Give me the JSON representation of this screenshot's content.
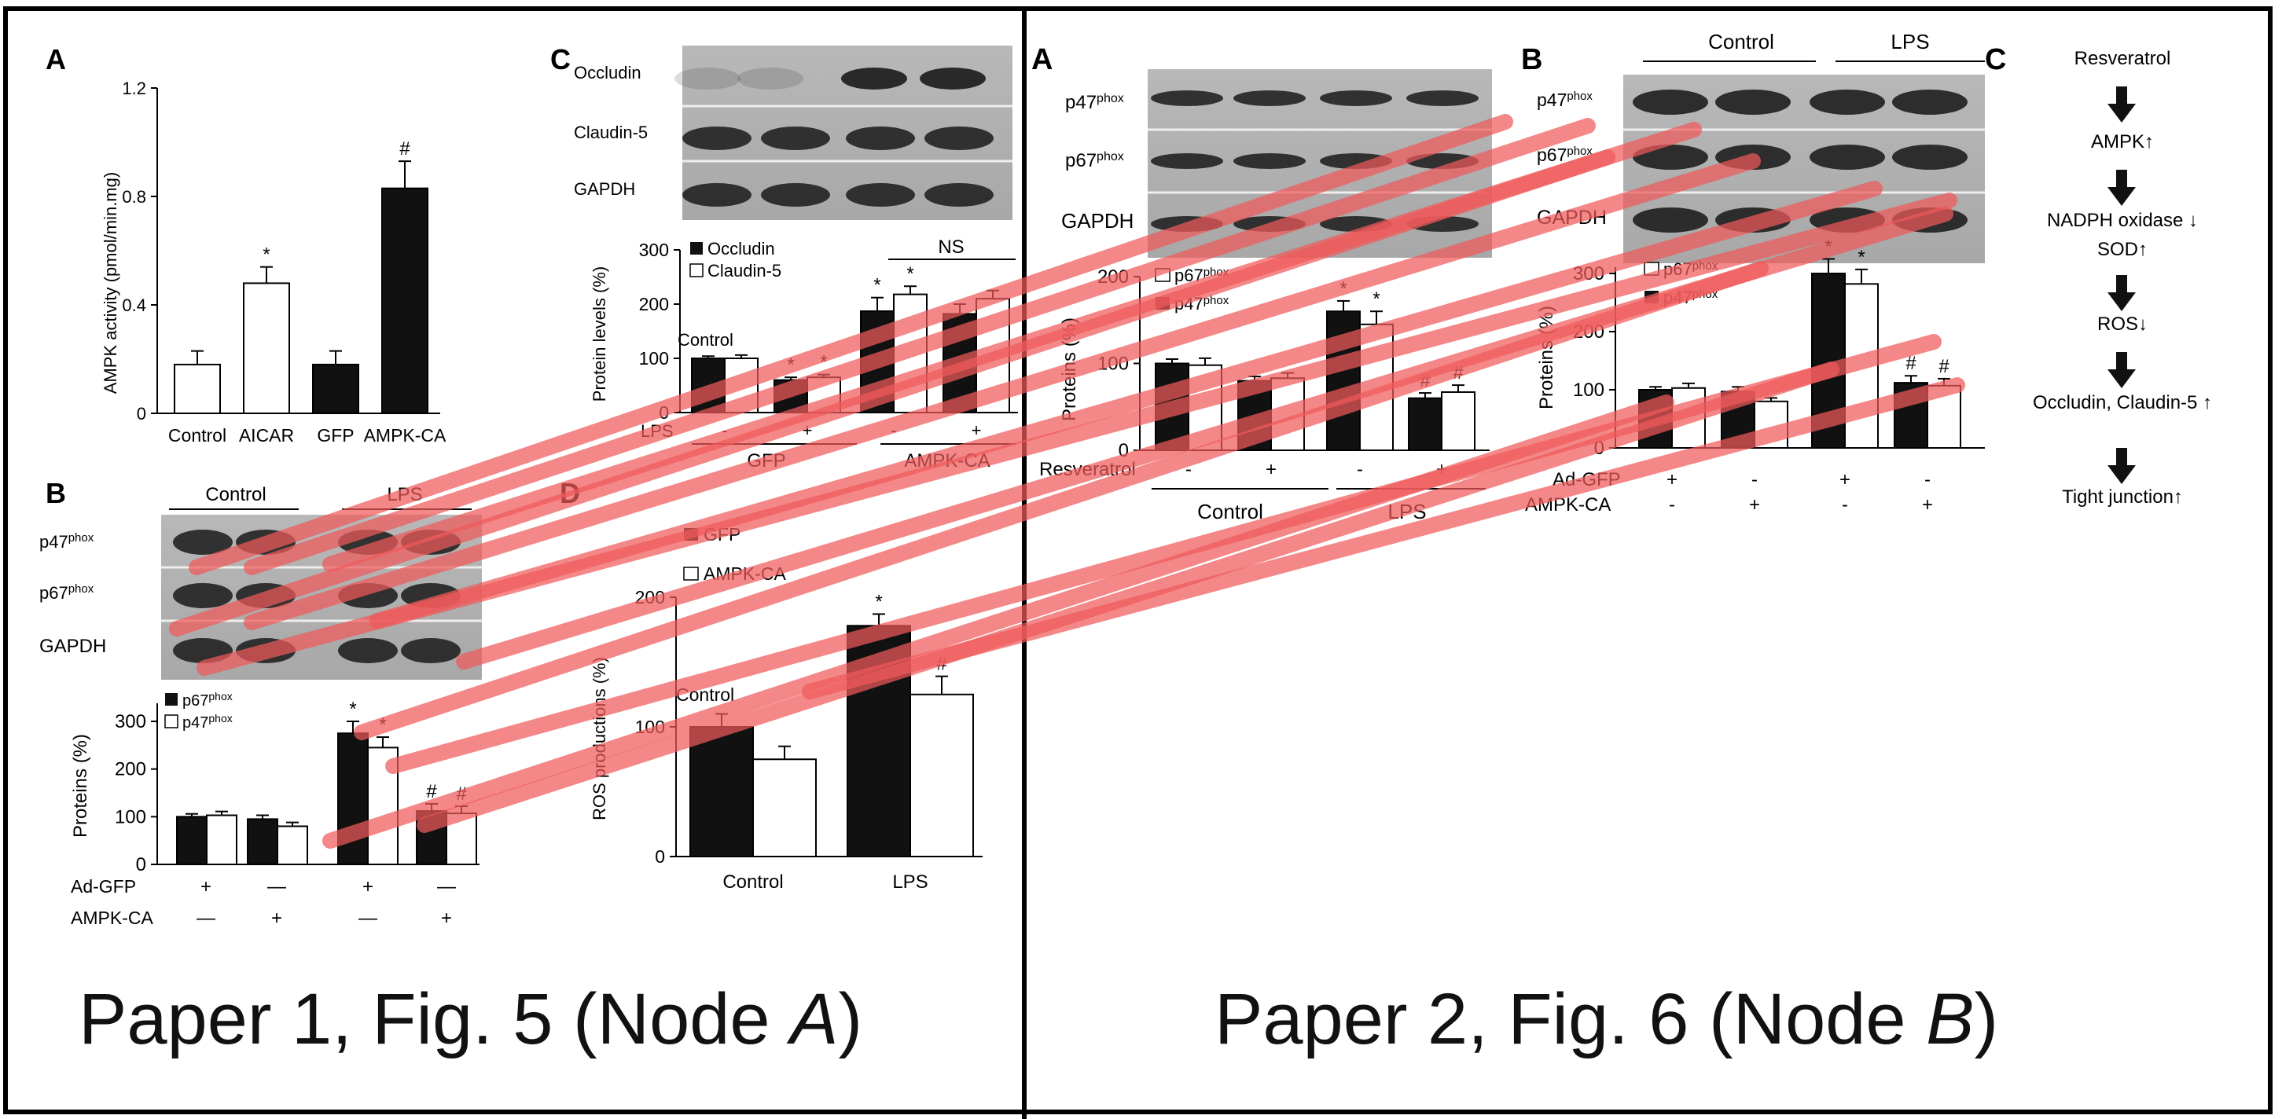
{
  "caption_left": {
    "prefix": "Paper 1, Fig. 5 (Node ",
    "node": "A",
    "suffix": ")"
  },
  "caption_right": {
    "prefix": "Paper 2, Fig. 6 (Node ",
    "node": "B",
    "suffix": ")"
  },
  "colors": {
    "overlay": "#f05a5a",
    "black_bar": "#111111",
    "white_bar": "#ffffff"
  },
  "p1": {
    "A": {
      "label": "A",
      "ylabel": "AMPK activity (pmol/min.mg)",
      "yticks": [
        "0",
        "0.4",
        "0.8",
        "1.2"
      ],
      "categories": [
        "Control",
        "AICAR",
        "GFP",
        "AMPK-CA"
      ],
      "marks": [
        "",
        "*",
        "",
        "#"
      ]
    },
    "B": {
      "label": "B",
      "groups": [
        "Control",
        "LPS"
      ],
      "blot_labels": [
        "p47",
        "p67",
        "GAPDH"
      ],
      "sup": "phox",
      "legend": [
        "p67",
        "p47"
      ],
      "ylabel": "Proteins (%)",
      "yticks": [
        "0",
        "100",
        "200",
        "300"
      ],
      "row1_label": "Ad-GFP",
      "row1": [
        "+",
        "—",
        "+",
        "—"
      ],
      "row2_label": "AMPK-CA",
      "row2": [
        "—",
        "+",
        "—",
        "+"
      ],
      "marks_black": [
        "",
        "",
        "*",
        "#"
      ],
      "marks_white": [
        "",
        "",
        "*",
        "#"
      ]
    },
    "C": {
      "label": "C",
      "blot_labels": [
        "Occludin",
        "Claudin-5",
        "GAPDH"
      ],
      "legend": [
        "Occludin",
        "Claudin-5"
      ],
      "ylabel": "Protein levels (%)",
      "yticks": [
        "0",
        "100",
        "200",
        "300"
      ],
      "ns": "NS",
      "control": "Control",
      "lps": "LPS",
      "signs": [
        "-",
        "+",
        "-",
        "+"
      ],
      "groups": [
        "GFP",
        "AMPK-CA"
      ],
      "marks_black": [
        "",
        "*",
        "*",
        ""
      ],
      "marks_white": [
        "",
        "*",
        "*",
        ""
      ]
    },
    "D": {
      "label": "D",
      "legend": [
        "GFP",
        "AMPK-CA"
      ],
      "ylabel": "ROS productions (%)",
      "yticks": [
        "0",
        "100",
        "200"
      ],
      "categories": [
        "Control",
        "LPS"
      ],
      "control": "Control",
      "marks_black": [
        "",
        "*"
      ],
      "marks_white": [
        "",
        "#"
      ]
    }
  },
  "p2": {
    "A": {
      "label": "A",
      "blot_labels": [
        "p47",
        "p67",
        "GAPDH"
      ],
      "sup": "phox",
      "legend": [
        "p67",
        "p47"
      ],
      "ylabel": "Proteins (%)",
      "yticks": [
        "0",
        "100",
        "200"
      ],
      "row_label": "Resveratrol",
      "signs": [
        "-",
        "+",
        "-",
        "+"
      ],
      "groups": [
        "Control",
        "LPS"
      ],
      "marks_black": [
        "",
        "",
        "*",
        "#"
      ],
      "marks_white": [
        "",
        "",
        "*",
        "#"
      ]
    },
    "B": {
      "label": "B",
      "groups": [
        "Control",
        "LPS"
      ],
      "blot_labels": [
        "p47",
        "p67",
        "GAPDH"
      ],
      "sup": "phox",
      "legend": [
        "p67",
        "p47"
      ],
      "ylabel": "Proteins (%)",
      "yticks": [
        "0",
        "100",
        "200",
        "300"
      ],
      "row1_label": "Ad-GFP",
      "row1": [
        "+",
        "-",
        "+",
        "-"
      ],
      "row2_label": "AMPK-CA",
      "row2": [
        "-",
        "+",
        "-",
        "+"
      ],
      "marks_black": [
        "",
        "",
        "*",
        "#"
      ],
      "marks_white": [
        "",
        "",
        "*",
        "#"
      ]
    },
    "C": {
      "label": "C",
      "steps": [
        "Resveratrol",
        "AMPK↑",
        "NADPH oxidase ↓",
        "SOD↑",
        "ROS↓",
        "Occludin, Claudin-5 ↑",
        "Tight junction↑"
      ]
    }
  },
  "chart_data": [
    {
      "type": "bar",
      "ylabel": "AMPK activity (pmol/min.mg)",
      "ylim": [
        0,
        1.2
      ],
      "categories": [
        "Control",
        "AICAR",
        "GFP",
        "AMPK-CA"
      ],
      "values": [
        0.18,
        0.48,
        0.18,
        0.83
      ],
      "errors": [
        0.05,
        0.06,
        0.05,
        0.1
      ]
    },
    {
      "type": "bar",
      "ylabel": "Proteins (%)",
      "ylim": [
        0,
        300
      ],
      "series": [
        {
          "name": "p67phox",
          "values": [
            100,
            95,
            275,
            112
          ],
          "errors": [
            6,
            8,
            25,
            15
          ]
        },
        {
          "name": "p47phox",
          "values": [
            103,
            80,
            245,
            107
          ],
          "errors": [
            8,
            8,
            22,
            15
          ]
        }
      ]
    },
    {
      "type": "bar",
      "ylabel": "Protein levels (%)",
      "ylim": [
        0,
        300
      ],
      "series": [
        {
          "name": "Occludin",
          "values": [
            100,
            60,
            187,
            182
          ],
          "errors": [
            4,
            5,
            25,
            18
          ]
        },
        {
          "name": "Claudin-5",
          "values": [
            100,
            65,
            218,
            210
          ],
          "errors": [
            6,
            5,
            15,
            15
          ]
        }
      ]
    },
    {
      "type": "bar",
      "ylabel": "ROS productions (%)",
      "ylim": [
        0,
        200
      ],
      "categories": [
        "Control",
        "LPS"
      ],
      "series": [
        {
          "name": "GFP",
          "values": [
            100,
            178
          ],
          "errors": [
            10,
            9
          ]
        },
        {
          "name": "AMPK-CA",
          "values": [
            75,
            125
          ],
          "errors": [
            10,
            14
          ]
        }
      ]
    },
    {
      "type": "bar",
      "ylabel": "Proteins (%)",
      "ylim": [
        0,
        200
      ],
      "series": [
        {
          "name": "p47phox",
          "values": [
            100,
            80,
            160,
            60
          ],
          "errors": [
            5,
            5,
            12,
            6
          ]
        },
        {
          "name": "p67phox",
          "values": [
            98,
            83,
            145,
            67
          ],
          "errors": [
            8,
            6,
            15,
            8
          ]
        }
      ]
    },
    {
      "type": "bar",
      "ylabel": "Proteins (%)",
      "ylim": [
        0,
        300
      ],
      "series": [
        {
          "name": "p47phox",
          "values": [
            100,
            97,
            300,
            112
          ],
          "errors": [
            5,
            8,
            25,
            12
          ]
        },
        {
          "name": "p67phox",
          "values": [
            103,
            80,
            282,
            107
          ],
          "errors": [
            8,
            6,
            25,
            12
          ]
        }
      ]
    }
  ]
}
